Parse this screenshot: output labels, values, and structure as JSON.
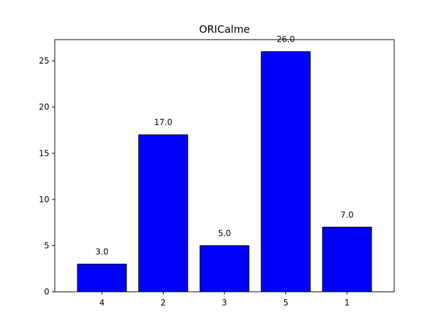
{
  "chart_data": {
    "type": "bar",
    "title": "ORICalme",
    "xlabel": "",
    "ylabel": "",
    "categories": [
      "4",
      "2",
      "3",
      "5",
      "1"
    ],
    "values": [
      3.0,
      17.0,
      5.0,
      26.0,
      7.0
    ],
    "data_labels": [
      "3.0",
      "17.0",
      "5.0",
      "26.0",
      "7.0"
    ],
    "ylim": [
      0,
      27.3
    ],
    "yticks": [
      0,
      5,
      10,
      15,
      20,
      25
    ],
    "bar_color": "#0000ff",
    "bar_edge_color": "#000000",
    "grid": false,
    "legend": "none"
  }
}
